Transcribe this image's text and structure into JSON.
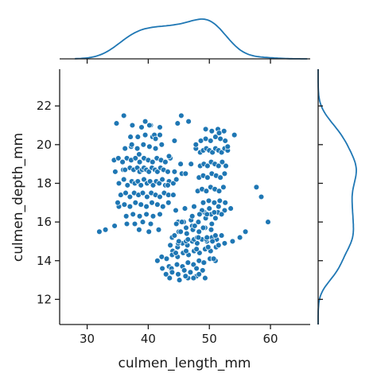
{
  "chart_data": {
    "type": "scatter",
    "title": "",
    "xlabel": "culmen_length_mm",
    "ylabel": "culmen_depth_mm",
    "xlim": [
      25.5,
      66.5
    ],
    "ylim": [
      10.7,
      23.9
    ],
    "xticks": [
      30,
      40,
      50,
      60
    ],
    "yticks": [
      12,
      14,
      16,
      18,
      20,
      22
    ],
    "grid": false,
    "legend": "none",
    "marginals": "kde (top: culmen_length_mm, right: culmen_depth_mm)",
    "colors": {
      "points": "#1f77b4",
      "point_edge": "#ffffff",
      "kde": "#1f77b4",
      "axes": "#1a1a1a"
    },
    "x": [
      34.6,
      35.9,
      36.2,
      37.0,
      37.6,
      38.2,
      38.6,
      39.0,
      39.3,
      39.7,
      40.1,
      40.6,
      41.1,
      41.5,
      42.0,
      42.5,
      43.2,
      35.2,
      36.0,
      36.6,
      37.3,
      37.8,
      38.3,
      38.8,
      39.3,
      39.8,
      40.3,
      40.8,
      41.3,
      41.8,
      42.3,
      42.8,
      43.4,
      44.1,
      35.5,
      36.3,
      37.0,
      37.7,
      38.4,
      39.1,
      39.8,
      40.5,
      41.2,
      41.9,
      42.6,
      43.3,
      34.4,
      35.1,
      35.8,
      36.5,
      37.2,
      37.9,
      38.6,
      39.3,
      40.0,
      40.7,
      41.4,
      42.1,
      42.8,
      43.6,
      35.2,
      36.1,
      37.0,
      37.9,
      38.8,
      39.7,
      40.6,
      41.5,
      42.4,
      43.3,
      36.2,
      37.2,
      38.2,
      39.2,
      40.2,
      41.2,
      42.2,
      36.4,
      37.5,
      38.6,
      39.7,
      40.8,
      41.9,
      37.1,
      38.3,
      39.5,
      40.7,
      41.9,
      36.5,
      37.8,
      39.1,
      40.4,
      37.4,
      38.9,
      40.4,
      41.9,
      38.5,
      40.1,
      41.7,
      34.5,
      33.0,
      32.0,
      34.8,
      36.0,
      35.0,
      39.5,
      40.2,
      41.0,
      41.2,
      38.5,
      37.3,
      45.4,
      44.8,
      46.6,
      44.3,
      43.4,
      44.3,
      45.5,
      44.1,
      44.6,
      43.2,
      46.1,
      45.3,
      47.0,
      47.8,
      48.5,
      49.0,
      49.5,
      50.0,
      50.5,
      51.0,
      51.5,
      52.0,
      52.5,
      53.0,
      48.5,
      49.1,
      49.7,
      50.3,
      50.9,
      51.5,
      52.1,
      52.7,
      48.3,
      49.0,
      49.7,
      50.4,
      51.1,
      51.8,
      52.5,
      48.1,
      48.8,
      49.5,
      50.2,
      50.9,
      51.6,
      52.3,
      48.6,
      49.4,
      50.2,
      51.0,
      51.8,
      52.6,
      49.0,
      49.9,
      50.8,
      51.7,
      52.6,
      49.4,
      50.4,
      51.4,
      52.4,
      49.2,
      50.3,
      51.4,
      47.8,
      51.6,
      53.0,
      54.1,
      57.7,
      58.5,
      51.0,
      44.0,
      43.9,
      47.2,
      44.9,
      43.4,
      43.8,
      45.0,
      41.5,
      42.2,
      43.0,
      43.9,
      44.8,
      45.7,
      46.6,
      47.5,
      48.4,
      49.3,
      50.2,
      51.1,
      44.8,
      45.6,
      46.4,
      47.2,
      48.0,
      48.8,
      49.6,
      50.4,
      51.2,
      52.0,
      43.8,
      44.7,
      45.6,
      46.5,
      47.4,
      48.3,
      49.2,
      50.1,
      51.0,
      44.3,
      45.3,
      46.3,
      47.3,
      48.3,
      49.3,
      50.3,
      42.9,
      43.9,
      44.9,
      45.9,
      46.9,
      47.9,
      48.9,
      44.6,
      45.8,
      47.0,
      48.2,
      49.4,
      45.1,
      46.5,
      47.9,
      49.3,
      43.6,
      44.9,
      46.2,
      47.5,
      44.5,
      46.0,
      47.5,
      48.8,
      50.0,
      51.5,
      52.5,
      53.5,
      47.2,
      48.4,
      49.6,
      50.8,
      52.0,
      46.2,
      47.6,
      49.0,
      50.4,
      45.0,
      46.5,
      48.0,
      49.5,
      51.0,
      44.5,
      46.2,
      47.9,
      49.8,
      51.5,
      52.5,
      53.8,
      55.0,
      48.2,
      45.5,
      43.5,
      42.3,
      59.6,
      55.9,
      50.5,
      49.6,
      46.1,
      47.4,
      48.3,
      49.1,
      50.7
    ],
    "y": [
      18.6,
      18.7,
      18.7,
      18.8,
      18.7,
      18.8,
      18.6,
      18.7,
      18.8,
      18.7,
      18.6,
      18.8,
      18.7,
      18.6,
      18.8,
      18.7,
      18.6,
      18.0,
      18.2,
      17.9,
      18.1,
      18.0,
      18.1,
      17.9,
      18.2,
      18.0,
      18.1,
      17.9,
      18.1,
      18.0,
      18.2,
      17.9,
      18.1,
      18.0,
      17.4,
      17.5,
      17.3,
      17.5,
      17.4,
      17.5,
      17.3,
      17.5,
      17.4,
      17.3,
      17.5,
      17.4,
      19.2,
      19.3,
      19.1,
      19.3,
      19.2,
      19.3,
      19.1,
      19.3,
      19.2,
      19.1,
      19.3,
      19.2,
      19.1,
      19.3,
      16.8,
      16.9,
      16.8,
      17.0,
      16.9,
      16.8,
      17.0,
      16.9,
      16.8,
      17.0,
      19.8,
      19.9,
      19.8,
      20.0,
      19.9,
      19.8,
      20.0,
      16.3,
      16.4,
      16.3,
      16.4,
      16.3,
      16.4,
      20.4,
      20.4,
      20.5,
      20.4,
      20.5,
      15.9,
      15.9,
      16.0,
      15.9,
      21.0,
      20.9,
      21.0,
      20.9,
      15.6,
      15.5,
      15.6,
      15.8,
      15.6,
      15.5,
      21.1,
      21.5,
      17.0,
      21.2,
      21.0,
      20.5,
      20.3,
      19.5,
      20.0,
      21.5,
      21.1,
      21.2,
      20.2,
      19.4,
      18.6,
      18.5,
      17.4,
      18.2,
      17.9,
      18.5,
      19.0,
      19.0,
      19.8,
      19.6,
      19.7,
      19.8,
      19.7,
      19.6,
      19.8,
      19.7,
      19.6,
      19.8,
      19.7,
      18.9,
      19.0,
      18.9,
      19.1,
      19.0,
      18.9,
      19.1,
      18.9,
      18.3,
      18.4,
      18.3,
      18.5,
      18.4,
      18.3,
      18.5,
      17.6,
      17.7,
      17.6,
      17.8,
      17.7,
      17.6,
      17.8,
      20.2,
      20.3,
      20.2,
      20.4,
      20.3,
      20.2,
      17.0,
      17.1,
      17.0,
      17.1,
      17.0,
      20.8,
      20.7,
      20.8,
      20.7,
      16.5,
      16.4,
      16.5,
      20.0,
      20.6,
      19.9,
      20.5,
      17.8,
      17.3,
      16.2,
      14.5,
      15.2,
      15.8,
      16.0,
      13.7,
      13.5,
      15.5,
      14.0,
      14.2,
      14.1,
      14.3,
      14.2,
      14.4,
      14.3,
      14.5,
      14.4,
      14.6,
      14.5,
      14.7,
      14.7,
      14.9,
      14.8,
      15.0,
      14.9,
      15.1,
      15.0,
      15.2,
      15.1,
      15.3,
      13.6,
      13.8,
      13.7,
      13.9,
      13.8,
      14.0,
      13.9,
      14.1,
      14.0,
      15.3,
      15.5,
      15.4,
      15.6,
      15.5,
      15.7,
      15.6,
      13.3,
      13.4,
      13.3,
      13.5,
      13.4,
      13.6,
      13.5,
      15.9,
      16.0,
      16.1,
      16.0,
      16.2,
      13.0,
      13.1,
      13.2,
      13.1,
      14.8,
      14.9,
      15.0,
      15.1,
      16.6,
      16.7,
      16.8,
      16.6,
      16.7,
      16.8,
      16.6,
      16.7,
      16.3,
      16.4,
      16.4,
      16.5,
      16.4,
      15.7,
      15.8,
      15.7,
      15.9,
      15.0,
      15.1,
      15.2,
      15.1,
      15.3,
      14.4,
      14.5,
      14.6,
      14.7,
      14.8,
      14.9,
      15.0,
      15.2,
      15.2,
      16.0,
      13.1,
      13.6,
      16.0,
      15.5,
      15.0,
      15.2,
      13.2,
      13.1,
      13.3,
      13.9,
      14.1
    ]
  }
}
